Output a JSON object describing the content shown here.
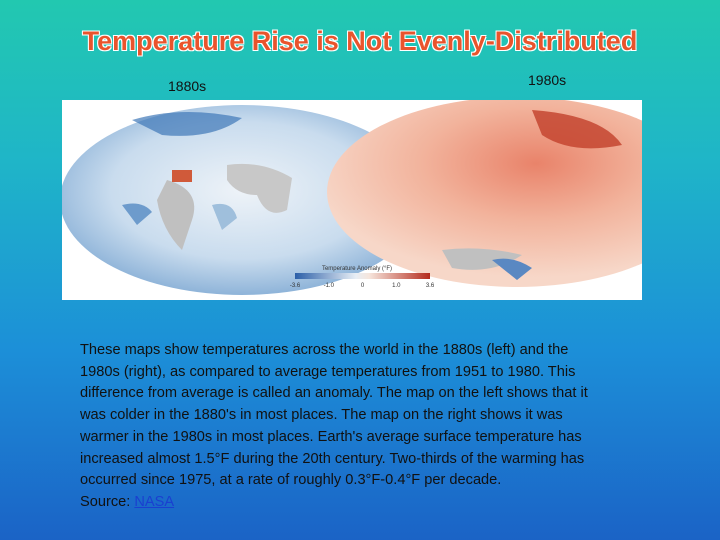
{
  "header": {
    "title": "Temperature Rise is Not Evenly-Distributed"
  },
  "maps": [
    {
      "label": "1880s"
    },
    {
      "label": "1980s"
    }
  ],
  "colorbar": {
    "title": "Temperature Anomaly (°F)",
    "ticks": [
      "-3.6",
      "-1.0",
      "0",
      "1.0",
      "3.6"
    ]
  },
  "paragraph": {
    "lines": [
      "These maps show temperatures across the world in the 1880s (left) and the",
      "1980s (right), as compared to average temperatures from 1951 to 1980. This",
      "difference from average is called an anomaly. The map on the left shows that it",
      "was colder in the 1880's in most places. The map on the right shows it was",
      "warmer in the 1980s in most places. Earth's average surface temperature has",
      "increased almost 1.5°F during the 20th century. Two-thirds of the warming has",
      "occurred since 1975, at a rate of roughly 0.3°F-0.4°F per decade."
    ],
    "source_label": "Source:",
    "source_link": "NASA"
  }
}
